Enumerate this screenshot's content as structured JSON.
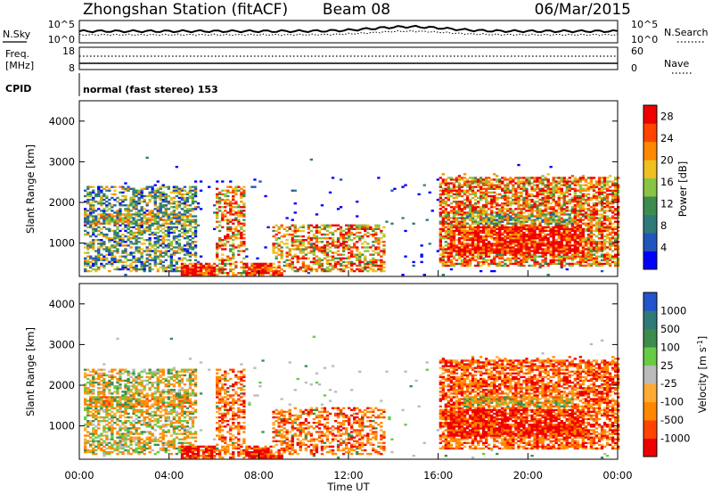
{
  "header": {
    "station": "Zhongshan Station (fitACF)",
    "beam": "Beam 08",
    "date": "06/Mar/2015"
  },
  "noise_panel": {
    "left_label": "N.Sky",
    "right_label": "N.Search",
    "left_ticks": [
      "10^5",
      "10^0"
    ],
    "right_ticks": [
      "10^5",
      "10^0"
    ]
  },
  "freq_panel": {
    "left_label_line1": "Freq.",
    "left_label_line2": "[MHz]",
    "right_label": "Nave",
    "left_ticks": [
      "18",
      "8"
    ],
    "right_ticks": [
      "60",
      "0"
    ]
  },
  "cpid": {
    "label": "CPID",
    "mode": "normal (fast stereo) 153"
  },
  "colors": {
    "power_scale": [
      "#0000ff",
      "#2255bb",
      "#2f7a78",
      "#3c8c4e",
      "#8ac443",
      "#f0c020",
      "#ff8800",
      "#ff4400",
      "#ee0000"
    ],
    "velocity_scale": [
      "#2255cc",
      "#2f7a78",
      "#3c8c4e",
      "#66cc44",
      "#bbbbbb",
      "#ffaa33",
      "#ff8800",
      "#ff4400",
      "#ee0000"
    ]
  },
  "chart_data": [
    {
      "type": "heatmap",
      "panel": "power",
      "ylabel": "Slant Range [km]",
      "yticks": [
        "1000",
        "2000",
        "3000",
        "4000"
      ],
      "ylim": [
        180,
        4500
      ],
      "xlim_hours": [
        0,
        24
      ],
      "colorbar": {
        "label": "Power [dB]",
        "ticks": [
          "4",
          "8",
          "12",
          "16",
          "20",
          "24",
          "28"
        ],
        "range": [
          0,
          30
        ]
      },
      "regions": [
        {
          "t0": 0.3,
          "t1": 5.0,
          "r0": 300,
          "r1": 2300,
          "level": "mixed green/orange/red"
        },
        {
          "t0": 4.5,
          "t1": 9.0,
          "r0": 180,
          "r1": 500,
          "level": "red (~28 dB)"
        },
        {
          "t0": 6.0,
          "t1": 7.2,
          "r0": 300,
          "r1": 2300,
          "level": "orange/red"
        },
        {
          "t0": 8.5,
          "t1": 13.5,
          "r0": 300,
          "r1": 1400,
          "level": "orange/red"
        },
        {
          "t0": 16.0,
          "t1": 24.0,
          "r0": 400,
          "r1": 2600,
          "level": "orange/red (~24-28 dB)"
        }
      ]
    },
    {
      "type": "heatmap",
      "panel": "velocity",
      "ylabel": "Slant Range [km]",
      "yticks": [
        "1000",
        "2000",
        "3000",
        "4000"
      ],
      "ylim": [
        180,
        4500
      ],
      "xlim_hours": [
        0,
        24
      ],
      "colorbar": {
        "label": "Velocity [m s^-1]",
        "ticks": [
          "1000",
          "500",
          "100",
          "25",
          "-25",
          "-100",
          "-500",
          "-1000"
        ]
      },
      "regions": [
        {
          "t0": 0.3,
          "t1": 5.0,
          "r0": 300,
          "r1": 2300,
          "level": "mixed grey/orange/green"
        },
        {
          "t0": 5.0,
          "t1": 9.0,
          "r0": 180,
          "r1": 500,
          "level": "orange (~-100 m/s)"
        },
        {
          "t0": 8.5,
          "t1": 13.5,
          "r0": 300,
          "r1": 1400,
          "level": "orange"
        },
        {
          "t0": 16.0,
          "t1": 24.0,
          "r0": 400,
          "r1": 2600,
          "level": "orange with green patches"
        }
      ]
    }
  ],
  "time_axis": {
    "ticks": [
      "00:00",
      "04:00",
      "08:00",
      "12:00",
      "16:00",
      "20:00",
      "00:00"
    ],
    "label": "Time UT"
  }
}
